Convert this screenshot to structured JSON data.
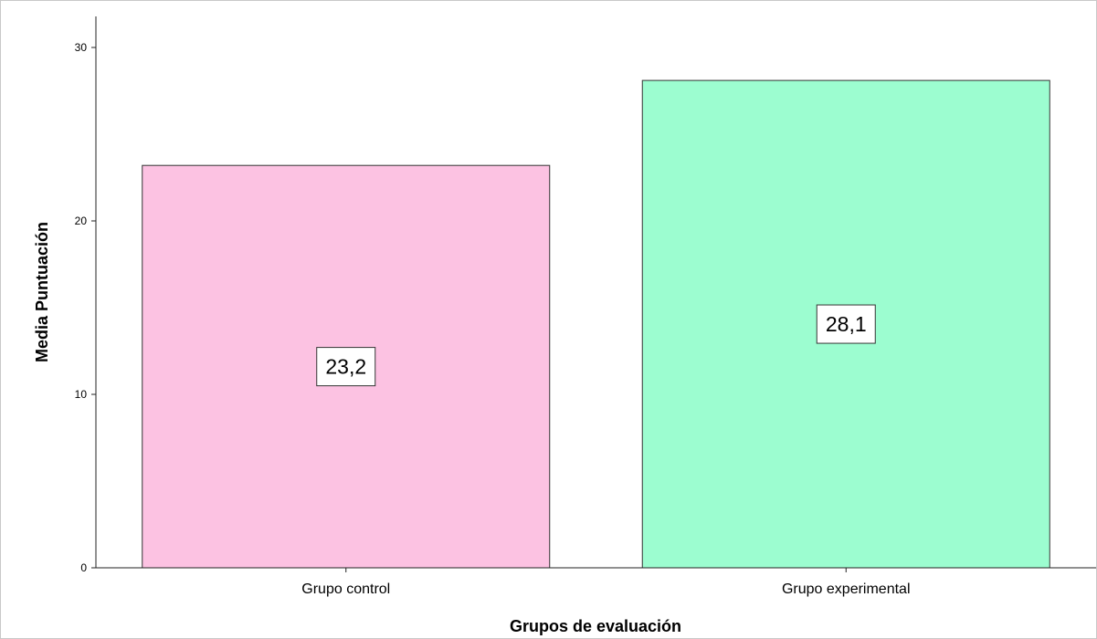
{
  "chart_data": {
    "type": "bar",
    "categories": [
      "Grupo control",
      "Grupo experimental"
    ],
    "values": [
      23.2,
      28.1
    ],
    "data_labels": [
      "23,2",
      "28,1"
    ],
    "colors": [
      "#FCC2E2",
      "#9CFDD0"
    ],
    "xlabel": "Grupos de evaluación",
    "ylabel": "Media Puntuación",
    "ylim": [
      0,
      30
    ],
    "yticks": [
      0,
      10,
      20,
      30
    ],
    "ytick_labels": [
      "0",
      "10",
      "20",
      "30"
    ],
    "grid": false,
    "legend": false
  }
}
